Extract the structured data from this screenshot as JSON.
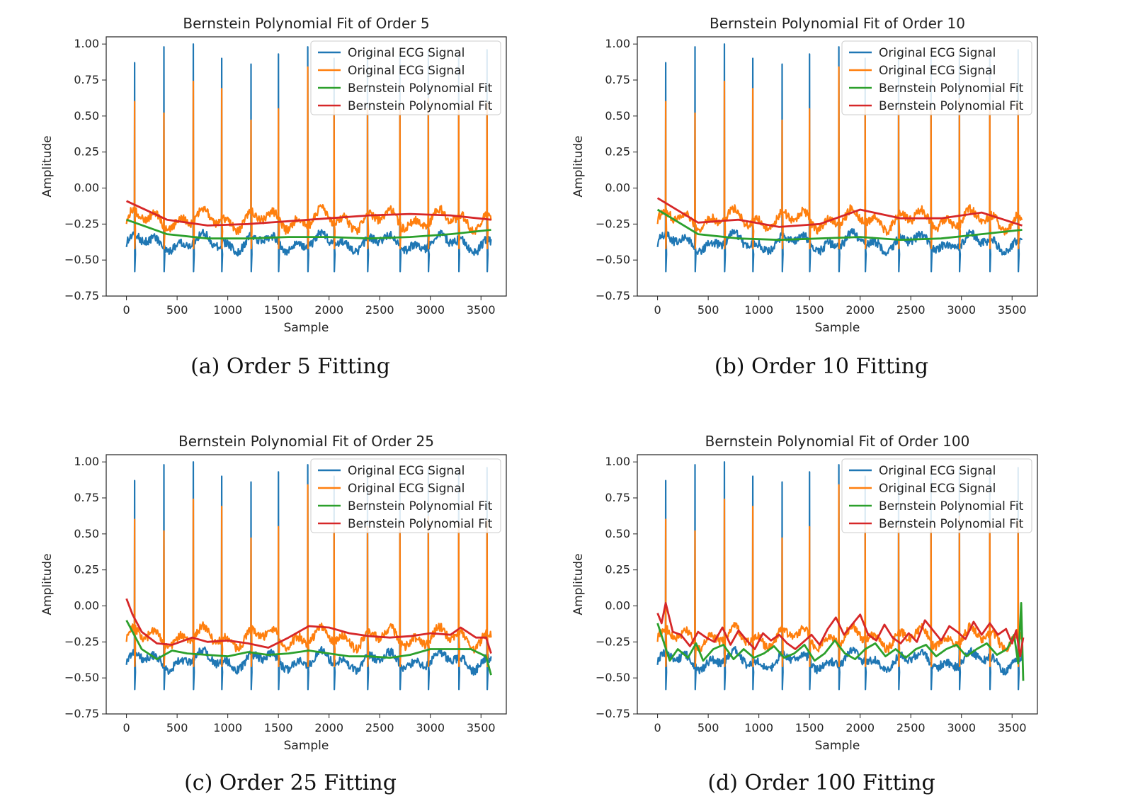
{
  "colors": {
    "ecg_blue": "#1f77b4",
    "ecg_orange": "#ff7f0e",
    "fit_green": "#2ca02c",
    "fit_red": "#d62728"
  },
  "captions": {
    "a": "(a) Order 5 Fitting",
    "b": "(b) Order 10 Fitting",
    "c": "(c) Order 25 Fitting",
    "d": "(d) Order 100 Fitting"
  },
  "chart_data": [
    {
      "id": "a",
      "type": "line",
      "title": "Bernstein Polynomial Fit of Order 5",
      "xlabel": "Sample",
      "ylabel": "Amplitude",
      "xlim": [
        -200,
        3750
      ],
      "ylim": [
        -0.75,
        1.05
      ],
      "xticks": [
        0,
        500,
        1000,
        1500,
        2000,
        2500,
        3000,
        3500
      ],
      "yticks": [
        -0.75,
        -0.5,
        -0.25,
        0.0,
        0.25,
        0.5,
        0.75,
        1.0
      ],
      "ytick_labels": [
        "−0.75",
        "−0.50",
        "−0.25",
        "0.00",
        "0.25",
        "0.50",
        "0.75",
        "1.00"
      ],
      "legend": [
        "Original ECG Signal",
        "Original ECG Signal",
        "Bernstein Polynomial Fit",
        "Bernstein Polynomial Fit"
      ],
      "legend_position": "upper-right",
      "series": [
        {
          "color": "#1f77b4",
          "baseline": -0.38,
          "peaks": [
            0.87,
            0.98,
            1.0,
            0.9,
            0.86,
            0.93,
            0.98,
            0.9,
            0.95,
            0.93,
            0.95,
            0.93,
            0.96,
            0.87
          ]
        },
        {
          "color": "#ff7f0e",
          "baseline": -0.22,
          "peaks": [
            0.6,
            0.52,
            0.74,
            0.69,
            0.47,
            0.55,
            0.84,
            0.57,
            0.55,
            0.55,
            0.62,
            0.58,
            0.59,
            0.42
          ]
        },
        {
          "color": "#2ca02c",
          "fit_x": [
            0,
            400,
            800,
            1200,
            1600,
            2000,
            2400,
            2800,
            3200,
            3600
          ],
          "fit_y": [
            -0.22,
            -0.32,
            -0.35,
            -0.35,
            -0.34,
            -0.34,
            -0.35,
            -0.34,
            -0.32,
            -0.29
          ]
        },
        {
          "color": "#d62728",
          "fit_x": [
            0,
            400,
            800,
            1200,
            1600,
            2000,
            2400,
            2800,
            3200,
            3600
          ],
          "fit_y": [
            -0.09,
            -0.22,
            -0.26,
            -0.25,
            -0.23,
            -0.21,
            -0.19,
            -0.18,
            -0.19,
            -0.22
          ]
        }
      ]
    },
    {
      "id": "b",
      "type": "line",
      "title": "Bernstein Polynomial Fit of Order 10",
      "xlabel": "Sample",
      "ylabel": "Amplitude",
      "xlim": [
        -200,
        3750
      ],
      "ylim": [
        -0.75,
        1.05
      ],
      "xticks": [
        0,
        500,
        1000,
        1500,
        2000,
        2500,
        3000,
        3500
      ],
      "yticks": [
        -0.75,
        -0.5,
        -0.25,
        0.0,
        0.25,
        0.5,
        0.75,
        1.0
      ],
      "ytick_labels": [
        "−0.75",
        "−0.50",
        "−0.25",
        "0.00",
        "0.25",
        "0.50",
        "0.75",
        "1.00"
      ],
      "legend": [
        "Original ECG Signal",
        "Original ECG Signal",
        "Bernstein Polynomial Fit",
        "Bernstein Polynomial Fit"
      ],
      "legend_position": "upper-right",
      "series": [
        {
          "color": "#1f77b4",
          "baseline": -0.38,
          "peaks": [
            0.87,
            0.98,
            1.0,
            0.9,
            0.86,
            0.93,
            0.98,
            0.9,
            0.95,
            0.93,
            0.95,
            0.93,
            0.96,
            0.87
          ]
        },
        {
          "color": "#ff7f0e",
          "baseline": -0.22,
          "peaks": [
            0.6,
            0.52,
            0.74,
            0.69,
            0.47,
            0.55,
            0.84,
            0.57,
            0.55,
            0.55,
            0.62,
            0.58,
            0.59,
            0.42
          ]
        },
        {
          "color": "#2ca02c",
          "fit_x": [
            0,
            400,
            800,
            1200,
            1600,
            2000,
            2400,
            2800,
            3200,
            3600
          ],
          "fit_y": [
            -0.15,
            -0.32,
            -0.35,
            -0.36,
            -0.35,
            -0.34,
            -0.36,
            -0.35,
            -0.32,
            -0.29
          ]
        },
        {
          "color": "#d62728",
          "fit_x": [
            0,
            400,
            800,
            1200,
            1600,
            2000,
            2400,
            2800,
            3200,
            3600
          ],
          "fit_y": [
            -0.07,
            -0.24,
            -0.22,
            -0.27,
            -0.25,
            -0.15,
            -0.21,
            -0.21,
            -0.17,
            -0.26
          ]
        }
      ]
    },
    {
      "id": "c",
      "type": "line",
      "title": "Bernstein Polynomial Fit of Order 25",
      "xlabel": "Sample",
      "ylabel": "Amplitude",
      "xlim": [
        -200,
        3750
      ],
      "ylim": [
        -0.75,
        1.05
      ],
      "xticks": [
        0,
        500,
        1000,
        1500,
        2000,
        2500,
        3000,
        3500
      ],
      "yticks": [
        -0.75,
        -0.5,
        -0.25,
        0.0,
        0.25,
        0.5,
        0.75,
        1.0
      ],
      "ytick_labels": [
        "−0.75",
        "−0.50",
        "−0.25",
        "0.00",
        "0.25",
        "0.50",
        "0.75",
        "1.00"
      ],
      "legend": [
        "Original ECG Signal",
        "Original ECG Signal",
        "Bernstein Polynomial Fit",
        "Bernstein Polynomial Fit"
      ],
      "legend_position": "upper-right",
      "series": [
        {
          "color": "#1f77b4",
          "baseline": -0.38,
          "peaks": [
            0.87,
            0.98,
            1.0,
            0.9,
            0.86,
            0.93,
            0.98,
            0.9,
            0.95,
            0.93,
            0.95,
            0.93,
            0.96,
            0.87
          ]
        },
        {
          "color": "#ff7f0e",
          "baseline": -0.22,
          "peaks": [
            0.6,
            0.52,
            0.74,
            0.69,
            0.47,
            0.55,
            0.84,
            0.57,
            0.55,
            0.55,
            0.62,
            0.58,
            0.59,
            0.42
          ]
        },
        {
          "color": "#2ca02c",
          "fit_x": [
            0,
            150,
            300,
            450,
            600,
            800,
            1000,
            1200,
            1400,
            1600,
            1800,
            2000,
            2200,
            2400,
            2600,
            2800,
            3000,
            3200,
            3400,
            3550,
            3600
          ],
          "fit_y": [
            -0.1,
            -0.3,
            -0.37,
            -0.31,
            -0.33,
            -0.34,
            -0.35,
            -0.32,
            -0.34,
            -0.33,
            -0.31,
            -0.33,
            -0.35,
            -0.35,
            -0.36,
            -0.34,
            -0.3,
            -0.3,
            -0.3,
            -0.35,
            -0.48
          ]
        },
        {
          "color": "#d62728",
          "fit_x": [
            0,
            60,
            150,
            300,
            450,
            650,
            800,
            1000,
            1200,
            1400,
            1600,
            1800,
            2000,
            2200,
            2400,
            2600,
            2800,
            3000,
            3200,
            3300,
            3450,
            3550,
            3600
          ],
          "fit_y": [
            0.05,
            -0.06,
            -0.18,
            -0.26,
            -0.27,
            -0.22,
            -0.25,
            -0.24,
            -0.26,
            -0.29,
            -0.22,
            -0.14,
            -0.15,
            -0.19,
            -0.21,
            -0.22,
            -0.21,
            -0.19,
            -0.2,
            -0.15,
            -0.22,
            -0.22,
            -0.33
          ]
        }
      ]
    },
    {
      "id": "d",
      "type": "line",
      "title": "Bernstein Polynomial Fit of Order 100",
      "xlabel": "Sample",
      "ylabel": "Amplitude",
      "xlim": [
        -200,
        3750
      ],
      "ylim": [
        -0.75,
        1.05
      ],
      "xticks": [
        0,
        500,
        1000,
        1500,
        2000,
        2500,
        3000,
        3500
      ],
      "yticks": [
        -0.75,
        -0.5,
        -0.25,
        0.0,
        0.25,
        0.5,
        0.75,
        1.0
      ],
      "ytick_labels": [
        "−0.75",
        "−0.50",
        "−0.25",
        "0.00",
        "0.25",
        "0.50",
        "0.75",
        "1.00"
      ],
      "legend": [
        "Original ECG Signal",
        "Original ECG Signal",
        "Bernstein Polynomial Fit",
        "Bernstein Polynomial Fit"
      ],
      "legend_position": "upper-right",
      "series": [
        {
          "color": "#1f77b4",
          "baseline": -0.38,
          "peaks": [
            0.87,
            0.98,
            1.0,
            0.9,
            0.86,
            0.93,
            0.98,
            0.9,
            0.95,
            0.93,
            0.95,
            0.93,
            0.96,
            0.87
          ]
        },
        {
          "color": "#ff7f0e",
          "baseline": -0.22,
          "peaks": [
            0.6,
            0.52,
            0.74,
            0.69,
            0.47,
            0.55,
            0.84,
            0.57,
            0.55,
            0.55,
            0.62,
            0.58,
            0.59,
            0.42
          ]
        },
        {
          "color": "#2ca02c",
          "fit_x": [
            0,
            60,
            120,
            200,
            300,
            380,
            450,
            550,
            650,
            750,
            850,
            950,
            1050,
            1150,
            1250,
            1350,
            1450,
            1550,
            1650,
            1750,
            1850,
            1950,
            2050,
            2150,
            2250,
            2350,
            2450,
            2550,
            2650,
            2750,
            2850,
            2950,
            3050,
            3150,
            3250,
            3350,
            3450,
            3520,
            3560,
            3590,
            3610
          ],
          "fit_y": [
            -0.12,
            -0.25,
            -0.38,
            -0.3,
            -0.36,
            -0.26,
            -0.38,
            -0.3,
            -0.27,
            -0.37,
            -0.3,
            -0.36,
            -0.33,
            -0.28,
            -0.36,
            -0.33,
            -0.27,
            -0.38,
            -0.33,
            -0.24,
            -0.33,
            -0.37,
            -0.3,
            -0.26,
            -0.35,
            -0.3,
            -0.36,
            -0.3,
            -0.27,
            -0.35,
            -0.3,
            -0.27,
            -0.35,
            -0.3,
            -0.26,
            -0.34,
            -0.3,
            -0.2,
            -0.4,
            0.02,
            -0.52
          ]
        },
        {
          "color": "#d62728",
          "fit_x": [
            0,
            40,
            80,
            150,
            230,
            320,
            400,
            480,
            560,
            640,
            720,
            800,
            880,
            960,
            1040,
            1120,
            1200,
            1280,
            1360,
            1440,
            1520,
            1600,
            1680,
            1760,
            1840,
            1920,
            2000,
            2080,
            2160,
            2240,
            2320,
            2400,
            2480,
            2560,
            2640,
            2720,
            2800,
            2880,
            2960,
            3040,
            3120,
            3200,
            3280,
            3360,
            3440,
            3500,
            3540,
            3580,
            3610
          ],
          "fit_y": [
            -0.05,
            -0.12,
            0.02,
            -0.18,
            -0.2,
            -0.28,
            -0.18,
            -0.22,
            -0.25,
            -0.15,
            -0.27,
            -0.17,
            -0.24,
            -0.3,
            -0.19,
            -0.24,
            -0.2,
            -0.26,
            -0.3,
            -0.25,
            -0.2,
            -0.27,
            -0.16,
            -0.08,
            -0.2,
            -0.13,
            -0.06,
            -0.2,
            -0.24,
            -0.13,
            -0.22,
            -0.26,
            -0.19,
            -0.25,
            -0.1,
            -0.17,
            -0.24,
            -0.14,
            -0.18,
            -0.23,
            -0.11,
            -0.2,
            -0.12,
            -0.2,
            -0.16,
            -0.26,
            -0.17,
            -0.35,
            -0.22
          ]
        }
      ]
    }
  ]
}
